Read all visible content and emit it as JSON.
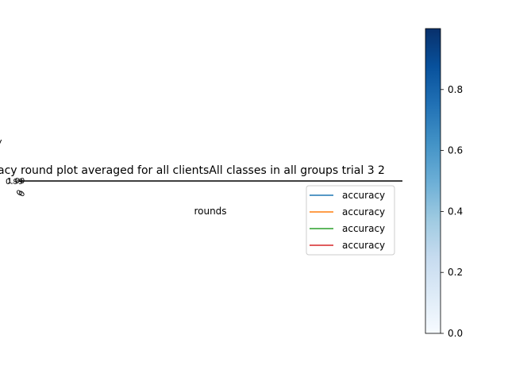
{
  "chart_data": [
    {
      "type": "line",
      "title": "acy round plot averaged for all clientsAll classes in all groups trial 3 2",
      "xlabel": "rounds",
      "ylabel": "",
      "ylabel_fragment": "y",
      "ytick_labels": [
        "0.99",
        "1.00"
      ],
      "xtick_labels": [
        "0",
        "0"
      ],
      "grid": false,
      "legend": {
        "placement": "right",
        "entries": [
          {
            "label": "accuracy",
            "color": "#1f77b4"
          },
          {
            "label": "accuracy",
            "color": "#ff7f0e"
          },
          {
            "label": "accuracy",
            "color": "#2ca02c"
          },
          {
            "label": "accuracy",
            "color": "#d62728"
          }
        ]
      },
      "series": []
    },
    {
      "type": "colorbar",
      "colormap": "Blues",
      "range": [
        0.0,
        1.0
      ],
      "tick_values": [
        0.0,
        0.2,
        0.4,
        0.6,
        0.8
      ],
      "tick_labels": [
        "0.0",
        "0.2",
        "0.4",
        "0.6",
        "0.8"
      ]
    }
  ]
}
